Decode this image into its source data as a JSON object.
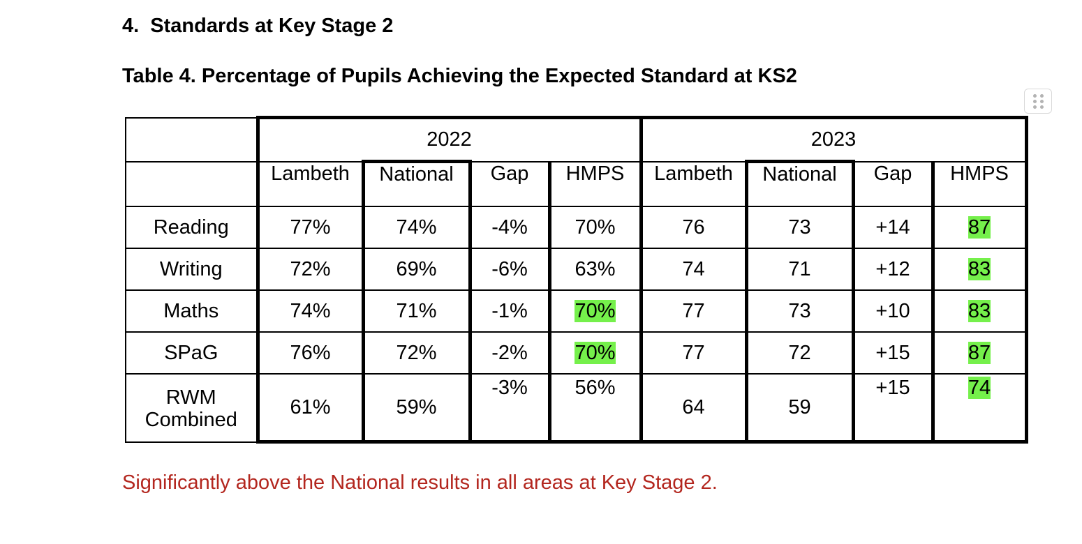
{
  "section_heading": "4.  Standards at Key Stage 2",
  "table_caption": "Table 4. Percentage of Pupils Achieving the Expected Standard at KS2",
  "table": {
    "years": [
      "2022",
      "2023"
    ],
    "columns": [
      "Lambeth",
      "National",
      "Gap",
      "HMPS",
      "Lambeth",
      "National",
      "Gap",
      "HMPS"
    ],
    "rows": [
      {
        "label": "Reading",
        "values": [
          "77%",
          "74%",
          "-4%",
          "70%",
          "76",
          "73",
          "+14",
          "87"
        ]
      },
      {
        "label": "Writing",
        "values": [
          "72%",
          "69%",
          "-6%",
          "63%",
          "74",
          "71",
          "+12",
          "83"
        ]
      },
      {
        "label": "Maths",
        "values": [
          "74%",
          "71%",
          "-1%",
          "70%",
          "77",
          "73",
          "+10",
          "83"
        ]
      },
      {
        "label": "SPaG",
        "values": [
          "76%",
          "72%",
          "-2%",
          "70%",
          "77",
          "72",
          "+15",
          "87"
        ]
      },
      {
        "label_line1": "RWM",
        "label_line2": "Combined",
        "values": [
          "61%",
          "59%",
          "-3%",
          "56%",
          "64",
          "59",
          "+15",
          "74"
        ]
      }
    ],
    "highlight_color": "#75f04b"
  },
  "note": "Significantly above the National results in all areas at Key Stage 2.",
  "note_color": "#b3261e",
  "drag_handle_icon": "grip-dots-icon"
}
